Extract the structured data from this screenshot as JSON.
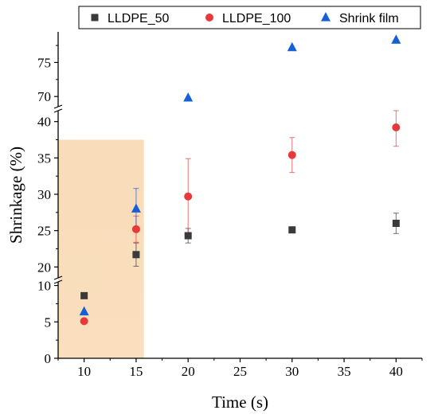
{
  "chart_data": {
    "type": "scatter",
    "xlabel": "Time (s)",
    "ylabel": "Shrinkage (%)",
    "xlim": [
      7.5,
      42.5
    ],
    "x_ticks": [
      10,
      15,
      20,
      25,
      30,
      35,
      40
    ],
    "y_axis_breaks": true,
    "y_segments": [
      {
        "range": [
          0,
          10.5
        ],
        "ticks": [
          0,
          5,
          10
        ]
      },
      {
        "range": [
          18.5,
          41.5
        ],
        "ticks": [
          20,
          25,
          30,
          35,
          40
        ]
      },
      {
        "range": [
          68.5,
          79.5
        ],
        "ticks": [
          70,
          75
        ]
      }
    ],
    "highlight_region": {
      "x": [
        7.5,
        15.75
      ],
      "y_top": 37.5,
      "color": "#f9dcb9"
    },
    "legend_position": "top",
    "series": [
      {
        "name": "LLDPE_50",
        "marker": "square",
        "color": "#3a3a3a",
        "points": [
          {
            "x": 10,
            "y": 8.6,
            "err": 0
          },
          {
            "x": 15,
            "y": 21.7,
            "err": 1.6
          },
          {
            "x": 20,
            "y": 24.3,
            "err": 1.0
          },
          {
            "x": 30,
            "y": 25.1,
            "err": 0
          },
          {
            "x": 40,
            "y": 26.0,
            "err": 1.4
          }
        ]
      },
      {
        "name": "LLDPE_100",
        "marker": "circle",
        "color": "#e8393a",
        "points": [
          {
            "x": 10,
            "y": 5.1,
            "err": 0
          },
          {
            "x": 15,
            "y": 25.2,
            "err": 1.8
          },
          {
            "x": 20,
            "y": 29.7,
            "err": 5.2
          },
          {
            "x": 30,
            "y": 35.4,
            "err": 2.4
          },
          {
            "x": 40,
            "y": 39.2,
            "err": 2.6
          }
        ]
      },
      {
        "name": "Shrink film",
        "marker": "triangle",
        "color": "#1560d4",
        "points": [
          {
            "x": 10,
            "y": 6.4,
            "err": 0
          },
          {
            "x": 15,
            "y": 28.0,
            "err": 2.8
          },
          {
            "x": 20,
            "y": 69.8,
            "err": 0
          },
          {
            "x": 30,
            "y": 77.2,
            "err": 0
          },
          {
            "x": 40,
            "y": 78.3,
            "err": 0
          }
        ]
      }
    ]
  }
}
